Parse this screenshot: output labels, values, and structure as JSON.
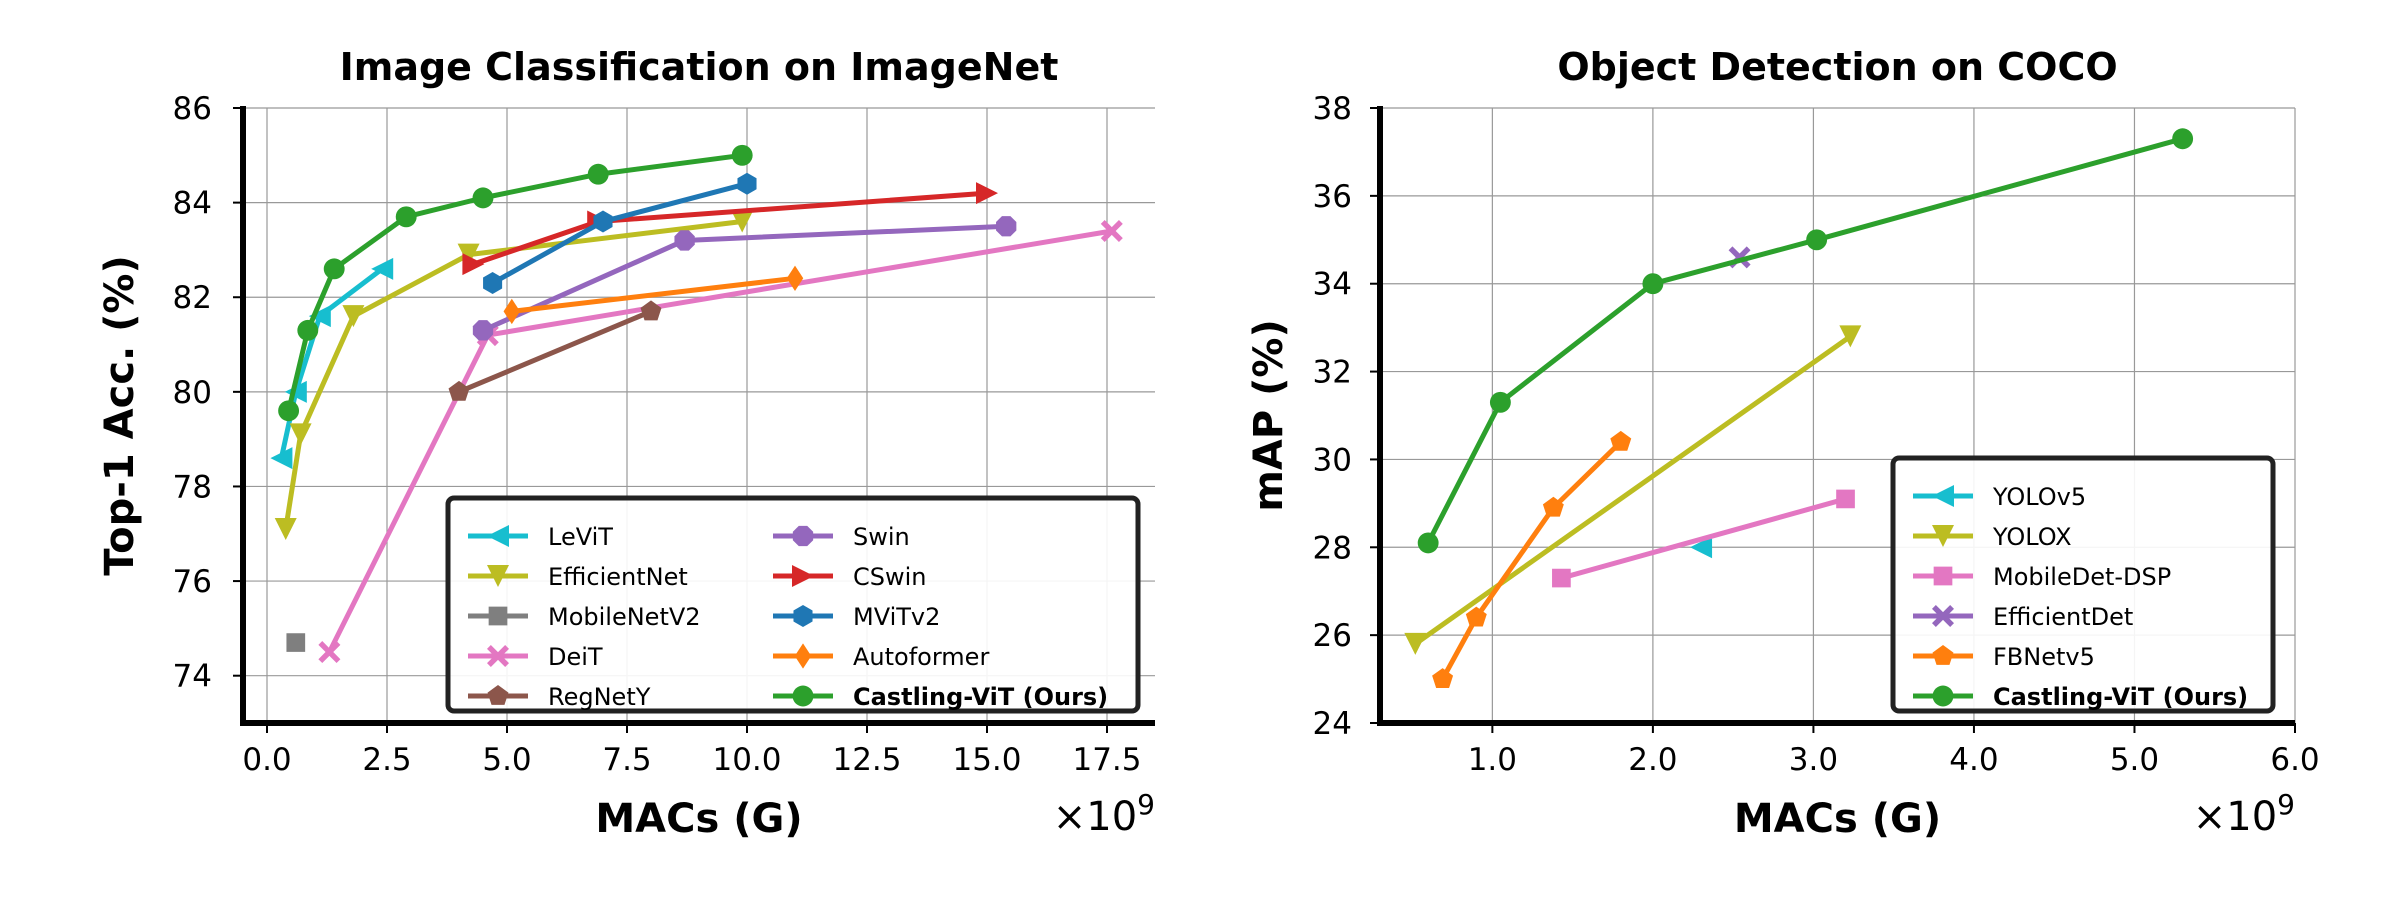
{
  "chart_data": [
    {
      "type": "line",
      "title": "Image Classification on ImageNet",
      "xlabel": "MACs (G)",
      "ylabel": "Top-1 Acc. (%)",
      "x_offset_label": "×10",
      "x_offset_exp": "9",
      "xlim": [
        -0.5,
        18.5
      ],
      "ylim": [
        73,
        86
      ],
      "xticks": [
        0,
        2.5,
        5,
        7.5,
        10,
        12.5,
        15,
        17.5
      ],
      "xtick_labels": [
        "0.0",
        "2.5",
        "5.0",
        "7.5",
        "10.0",
        "12.5",
        "15.0",
        "17.5"
      ],
      "yticks": [
        74,
        76,
        78,
        80,
        82,
        84,
        86
      ],
      "ytick_labels": [
        "74",
        "76",
        "78",
        "80",
        "82",
        "84",
        "86"
      ],
      "grid": true,
      "legend": {
        "placement": "lower-right",
        "columns": 2
      },
      "series": [
        {
          "name": "LeViT",
          "color": "#17becf",
          "marker": "triangle-left",
          "x": [
            0.3,
            0.6,
            1.1,
            2.4
          ],
          "y": [
            78.6,
            80.0,
            81.6,
            82.6
          ]
        },
        {
          "name": "EfficientNet",
          "color": "#bcbd22",
          "marker": "triangle-down",
          "x": [
            0.39,
            0.7,
            1.8,
            4.2,
            9.9
          ],
          "y": [
            77.1,
            79.1,
            81.6,
            82.9,
            83.6
          ]
        },
        {
          "name": "MobileNetV2",
          "color": "#7f7f7f",
          "marker": "square",
          "x": [
            0.6
          ],
          "y": [
            74.7
          ]
        },
        {
          "name": "DeiT",
          "color": "#e377c2",
          "marker": "x-filled",
          "x": [
            1.3,
            4.6,
            17.6
          ],
          "y": [
            74.5,
            81.2,
            83.4
          ]
        },
        {
          "name": "RegNetY",
          "color": "#8c564b",
          "marker": "pentagon",
          "x": [
            4.0,
            8.0
          ],
          "y": [
            80.0,
            81.7
          ]
        },
        {
          "name": "Swin",
          "color": "#9467bd",
          "marker": "octagon",
          "x": [
            4.5,
            8.7,
            15.4
          ],
          "y": [
            81.3,
            83.2,
            83.5
          ]
        },
        {
          "name": "CSwin",
          "color": "#d62728",
          "marker": "triangle-right",
          "x": [
            4.3,
            6.9,
            15.0
          ],
          "y": [
            82.7,
            83.6,
            84.2
          ]
        },
        {
          "name": "MViTv2",
          "color": "#1f77b4",
          "marker": "hexagon",
          "x": [
            4.7,
            7.0,
            10.0
          ],
          "y": [
            82.3,
            83.6,
            84.4
          ]
        },
        {
          "name": "Autoformer",
          "color": "#ff7f0e",
          "marker": "diamond",
          "x": [
            5.1,
            11.0
          ],
          "y": [
            81.7,
            82.4
          ]
        },
        {
          "name": "Castling-ViT (Ours)",
          "bold": true,
          "color": "#2ca02c",
          "marker": "circle",
          "x": [
            0.45,
            0.85,
            1.4,
            2.9,
            4.5,
            6.9,
            9.9
          ],
          "y": [
            79.6,
            81.3,
            82.6,
            83.7,
            84.1,
            84.6,
            85.0
          ]
        }
      ]
    },
    {
      "type": "line",
      "title": "Object Detection on COCO",
      "xlabel": "MACs (G)",
      "ylabel": "mAP (%)",
      "x_offset_label": "×10",
      "x_offset_exp": "9",
      "xlim": [
        0.3,
        6.0
      ],
      "ylim": [
        24,
        38
      ],
      "xticks": [
        1,
        2,
        3,
        4,
        5,
        6
      ],
      "xtick_labels": [
        "1.0",
        "2.0",
        "3.0",
        "4.0",
        "5.0",
        "6.0"
      ],
      "yticks": [
        24,
        26,
        28,
        30,
        32,
        34,
        36,
        38
      ],
      "ytick_labels": [
        "24",
        "26",
        "28",
        "30",
        "32",
        "34",
        "36",
        "38"
      ],
      "grid": true,
      "legend": {
        "placement": "lower-right",
        "columns": 1
      },
      "series": [
        {
          "name": "YOLOv5",
          "color": "#17becf",
          "marker": "triangle-left",
          "x": [
            2.3
          ],
          "y": [
            28.0
          ]
        },
        {
          "name": "YOLOX",
          "color": "#bcbd22",
          "marker": "triangle-down",
          "x": [
            0.52,
            3.23
          ],
          "y": [
            25.8,
            32.8
          ]
        },
        {
          "name": "MobileDet-DSP",
          "color": "#e377c2",
          "marker": "square",
          "x": [
            1.43,
            3.2
          ],
          "y": [
            27.3,
            29.1
          ]
        },
        {
          "name": "EfficientDet",
          "color": "#9467bd",
          "marker": "x-filled",
          "x": [
            2.54
          ],
          "y": [
            34.6
          ]
        },
        {
          "name": "FBNetv5",
          "color": "#ff7f0e",
          "marker": "pentagon",
          "x": [
            0.69,
            0.9,
            1.38,
            1.8
          ],
          "y": [
            25.0,
            26.4,
            28.9,
            30.4
          ]
        },
        {
          "name": "Castling-ViT (Ours)",
          "bold": true,
          "color": "#2ca02c",
          "marker": "circle",
          "x": [
            0.6,
            1.05,
            2.0,
            3.02,
            5.3
          ],
          "y": [
            28.1,
            31.3,
            34.0,
            35.0,
            37.3
          ]
        }
      ]
    }
  ]
}
